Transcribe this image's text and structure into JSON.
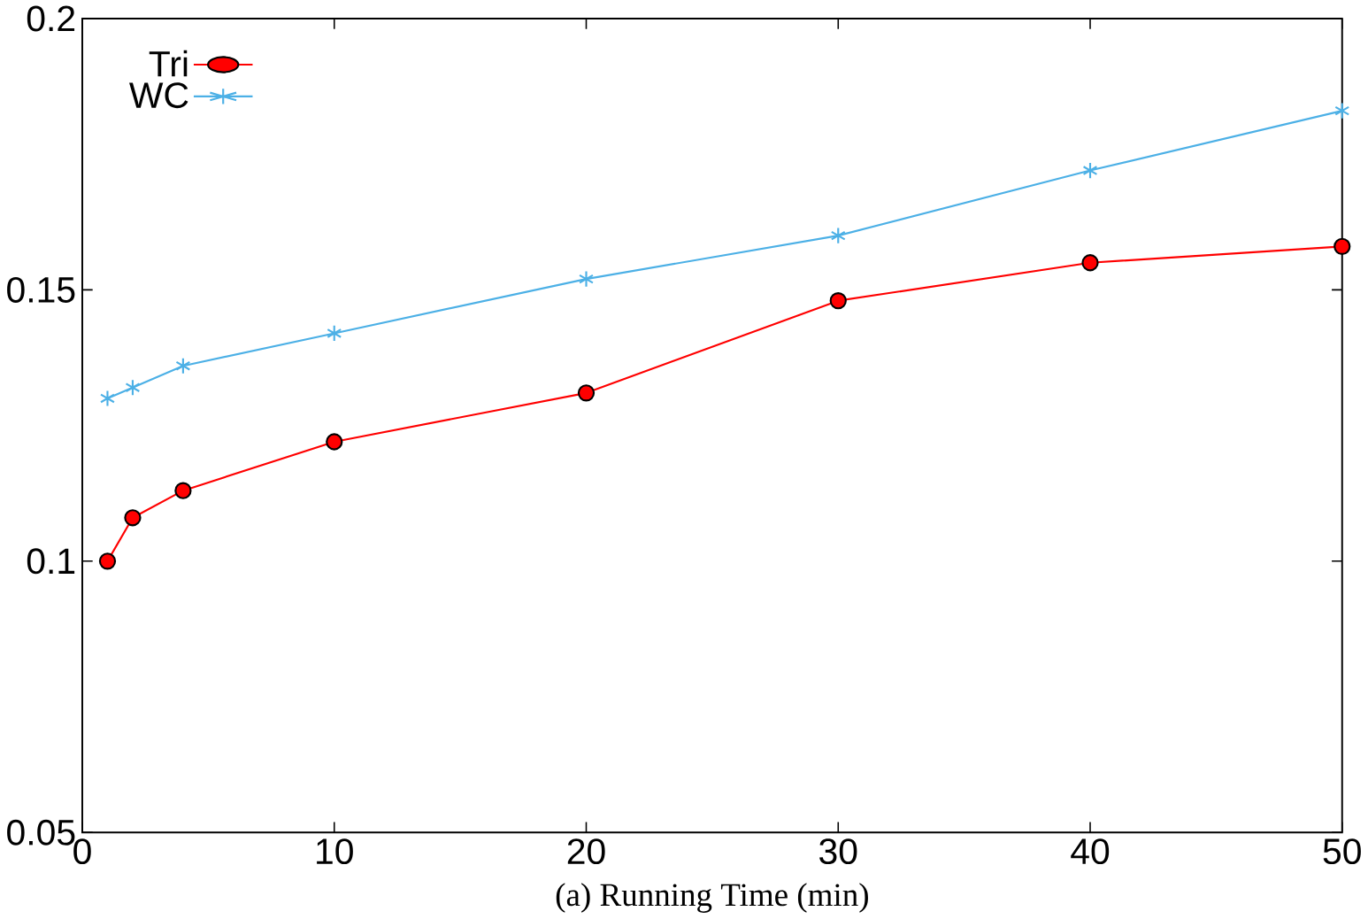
{
  "chart_data": {
    "type": "line",
    "xlabel": "(a) Running Time (min)",
    "x": [
      1,
      2,
      4,
      10,
      20,
      30,
      40,
      50
    ],
    "series": [
      {
        "name": "Tri",
        "color": "#ff0000",
        "marker": "circle",
        "values": [
          0.1,
          0.108,
          0.113,
          0.122,
          0.131,
          0.148,
          0.155,
          0.158
        ]
      },
      {
        "name": "WC",
        "color": "#4cb0e6",
        "marker": "cross",
        "values": [
          0.13,
          0.132,
          0.136,
          0.142,
          0.152,
          0.16,
          0.172,
          0.183
        ]
      }
    ],
    "xlim": [
      0,
      50
    ],
    "xticks": [
      0,
      10,
      20,
      30,
      40,
      50
    ],
    "ylim": [
      0.05,
      0.2
    ],
    "yticks": [
      0.05,
      0.1,
      0.15,
      0.2
    ],
    "legend": "top left",
    "grid": false,
    "line_style": "solid"
  }
}
